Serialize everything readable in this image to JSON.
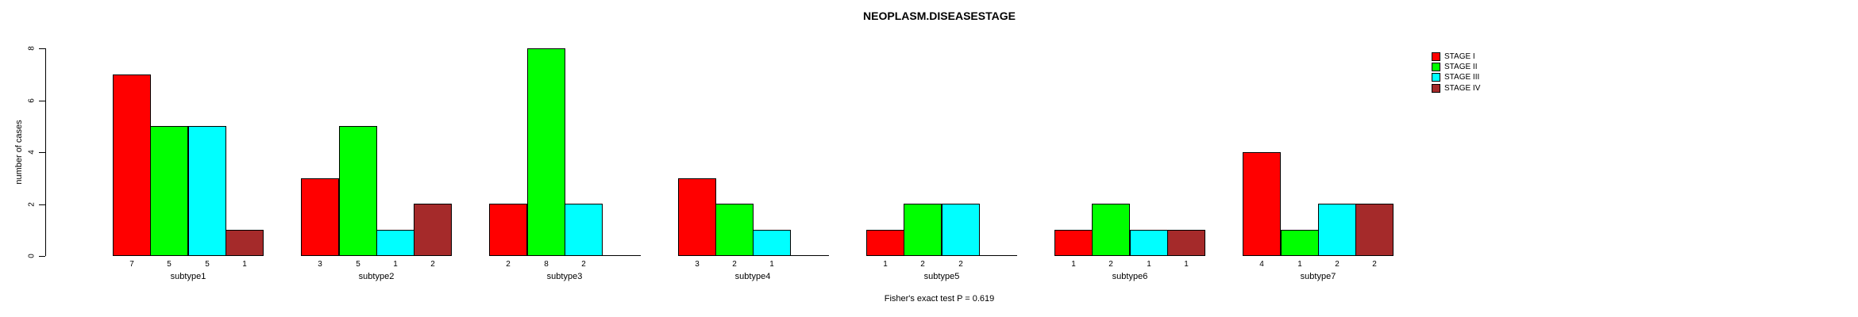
{
  "title": "NEOPLASM.DISEASESTAGE",
  "footer": {
    "text": "Fisher's exact test P = 0.619"
  },
  "y_axis": {
    "label": "number of cases",
    "ticks": [
      0,
      2,
      4,
      6,
      8
    ]
  },
  "legend": {
    "items": [
      {
        "label": "STAGE I",
        "color": "#FF0000"
      },
      {
        "label": "STAGE II",
        "color": "#00FF00"
      },
      {
        "label": "STAGE III",
        "color": "#00FFFF"
      },
      {
        "label": "STAGE IV",
        "color": "#A52A2A"
      }
    ]
  },
  "chart_data": {
    "type": "bar",
    "title": "NEOPLASM.DISEASESTAGE",
    "xlabel": "",
    "ylabel": "number of cases",
    "ylim": [
      0,
      8
    ],
    "yticks": [
      0,
      2,
      4,
      6,
      8
    ],
    "grid": false,
    "legend_position": "top-right",
    "bar_value_labels": "nonzero bar values printed below the axis under each bar",
    "annotation": "Fisher's exact test P = 0.619",
    "categories": [
      "subtype1",
      "subtype2",
      "subtype3",
      "subtype4",
      "subtype5",
      "subtype6",
      "subtype7"
    ],
    "series": [
      {
        "name": "STAGE I",
        "color": "#FF0000",
        "values": [
          7,
          3,
          2,
          3,
          1,
          1,
          4
        ]
      },
      {
        "name": "STAGE II",
        "color": "#00FF00",
        "values": [
          5,
          5,
          8,
          2,
          2,
          2,
          1
        ]
      },
      {
        "name": "STAGE III",
        "color": "#00FFFF",
        "values": [
          5,
          1,
          2,
          1,
          2,
          1,
          2
        ]
      },
      {
        "name": "STAGE IV",
        "color": "#A52A2A",
        "values": [
          1,
          2,
          0,
          0,
          0,
          1,
          2
        ]
      }
    ]
  }
}
